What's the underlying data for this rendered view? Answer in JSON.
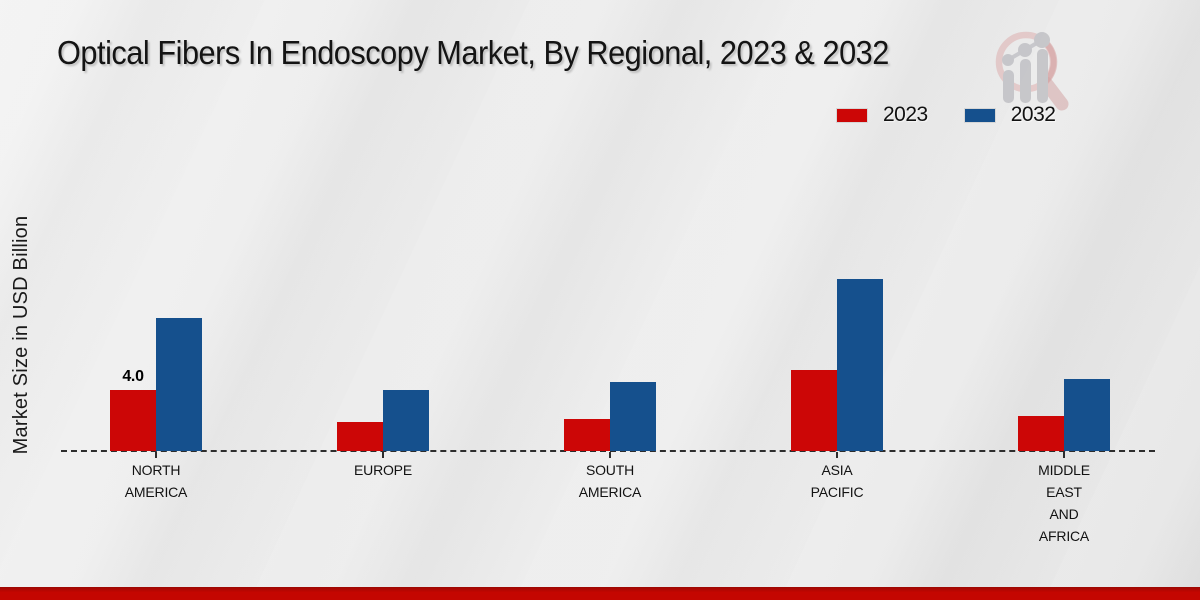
{
  "title": "Optical Fibers In Endoscopy Market, By Regional, 2023 & 2032",
  "legend": [
    {
      "label": "2023",
      "color": "#cc0606"
    },
    {
      "label": "2032",
      "color": "#15508d"
    }
  ],
  "watermark_icon": "magnifier-bar-chart-logo",
  "footer": {
    "accent_color": "#c40601"
  },
  "chart_data": {
    "type": "bar",
    "title": "Optical Fibers In Endoscopy Market, By Regional, 2023 & 2032",
    "xlabel": "",
    "ylabel": "Market Size in USD Billion",
    "categories": [
      "NORTH AMERICA",
      "EUROPE",
      "SOUTH AMERICA",
      "ASIA PACIFIC",
      "MIDDLE EAST AND AFRICA"
    ],
    "category_lines": [
      [
        "NORTH",
        "AMERICA"
      ],
      [
        "EUROPE"
      ],
      [
        "SOUTH",
        "AMERICA"
      ],
      [
        "ASIA",
        "PACIFIC"
      ],
      [
        "MIDDLE",
        "EAST",
        "AND",
        "AFRICA"
      ]
    ],
    "series": [
      {
        "name": "2023",
        "color": "#cc0606",
        "values": [
          4.0,
          1.9,
          2.1,
          5.3,
          2.3
        ],
        "data_labels": [
          "4.0",
          null,
          null,
          null,
          null
        ]
      },
      {
        "name": "2032",
        "color": "#15508d",
        "values": [
          8.7,
          4.0,
          4.5,
          11.3,
          4.7
        ],
        "data_labels": [
          null,
          null,
          null,
          null,
          null
        ]
      }
    ],
    "ylim": [
      0,
      12
    ],
    "grid": false,
    "y_axis_ticks_visible": false,
    "baseline_style": "dashed",
    "legend_position": "top-right"
  }
}
